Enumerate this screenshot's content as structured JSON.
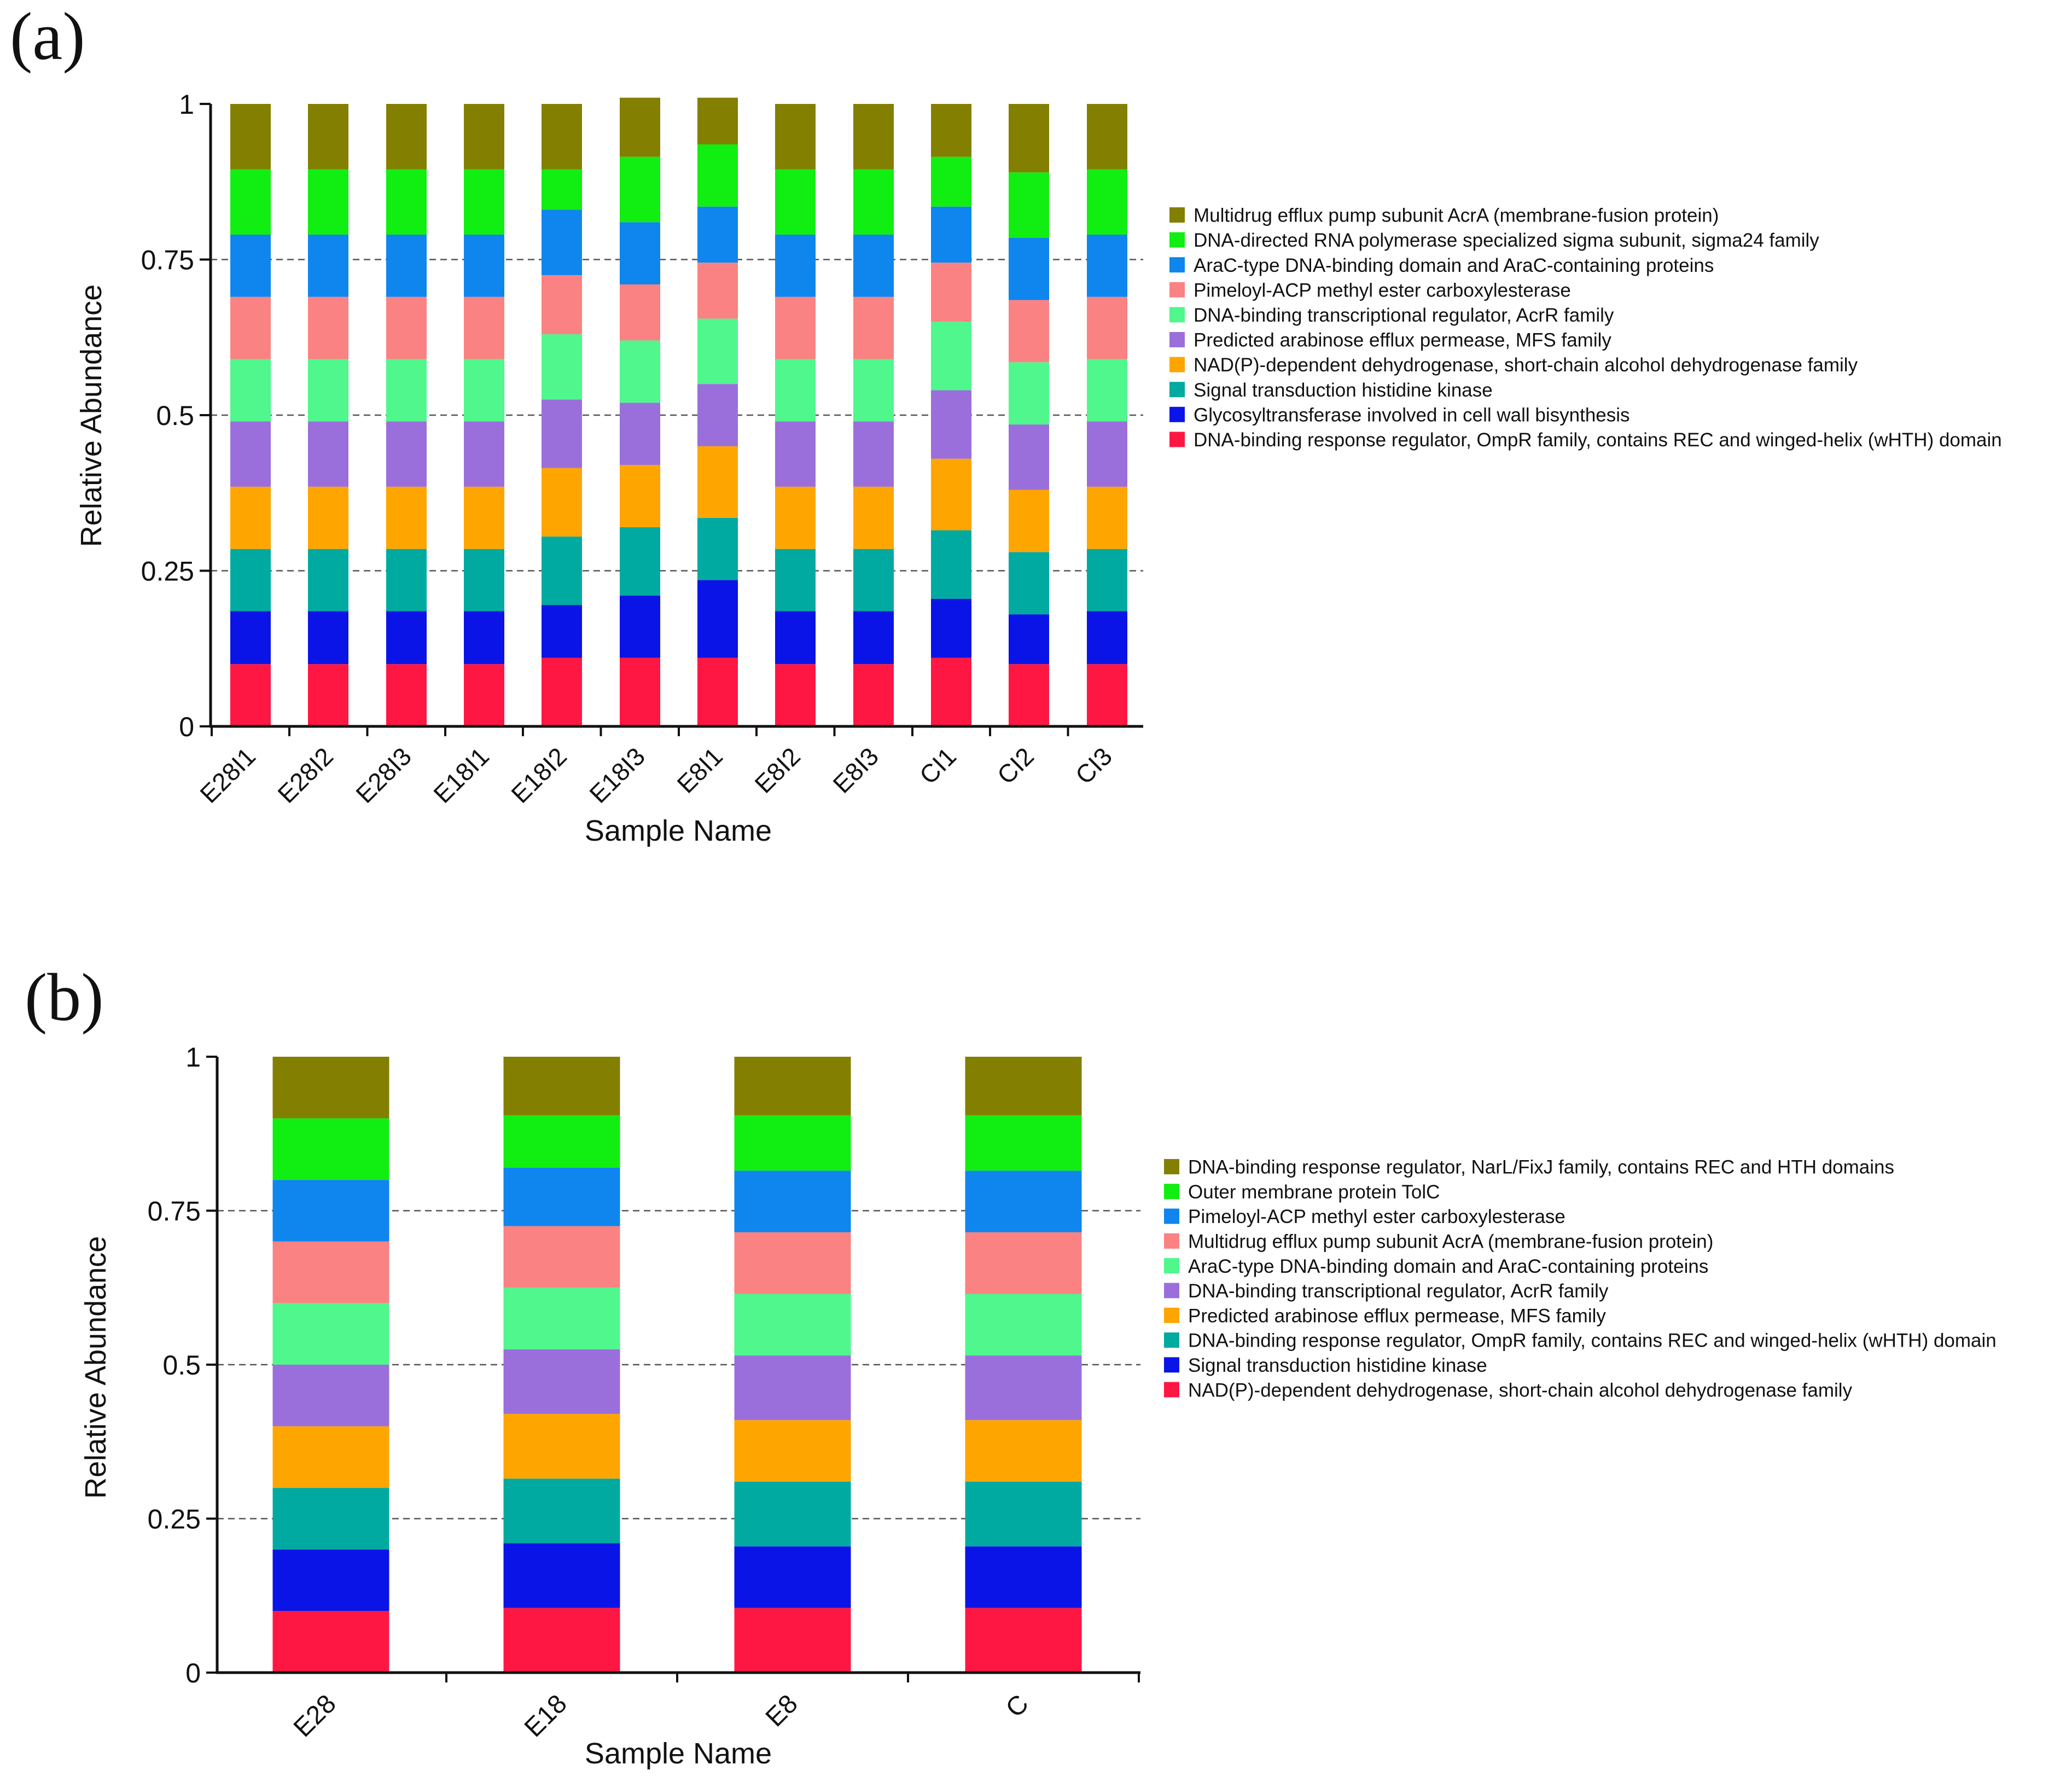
{
  "chart_data": [
    {
      "type": "bar",
      "stacked": true,
      "panel_label": "(a)",
      "xlabel": "Sample Name",
      "ylabel": "Relative Abundance",
      "ylim": [
        0,
        1
      ],
      "yticks": [
        "0",
        "0.25",
        "0.5",
        "0.75",
        "1"
      ],
      "ytick_values": [
        0,
        0.25,
        0.5,
        0.75,
        1
      ],
      "gridlines": "dashed at 0.25, 0.5, 0.75",
      "legend_position": "right",
      "categories": [
        "E28I1",
        "E28I2",
        "E28I3",
        "E18I1",
        "E18I2",
        "E18I3",
        "E8I1",
        "E8I2",
        "E8I3",
        "CI1",
        "CI2",
        "CI3"
      ],
      "series": [
        {
          "name": "DNA-binding response regulator, OmpR family, contains REC and winged-helix (wHTH) domain",
          "color": "#ff1744",
          "values": [
            0.1,
            0.1,
            0.1,
            0.1,
            0.11,
            0.11,
            0.11,
            0.1,
            0.1,
            0.11,
            0.1,
            0.1
          ]
        },
        {
          "name": "Glycosyltransferase involved in cell wall bisynthesis",
          "color": "#0a14e6",
          "values": [
            0.085,
            0.085,
            0.085,
            0.085,
            0.085,
            0.1,
            0.125,
            0.085,
            0.085,
            0.095,
            0.08,
            0.085
          ]
        },
        {
          "name": "Signal transduction histidine kinase",
          "color": "#00aaa0",
          "values": [
            0.1,
            0.1,
            0.1,
            0.1,
            0.11,
            0.11,
            0.1,
            0.1,
            0.1,
            0.11,
            0.1,
            0.1
          ]
        },
        {
          "name": "NAD(P)-dependent dehydrogenase, short-chain alcohol dehydrogenase family",
          "color": "#ffa500",
          "values": [
            0.1,
            0.1,
            0.1,
            0.1,
            0.11,
            0.1,
            0.115,
            0.1,
            0.1,
            0.115,
            0.1,
            0.1
          ]
        },
        {
          "name": "Predicted arabinose efflux permease, MFS family",
          "color": "#9a6fdc",
          "values": [
            0.105,
            0.105,
            0.105,
            0.105,
            0.11,
            0.1,
            0.1,
            0.105,
            0.105,
            0.11,
            0.105,
            0.105
          ]
        },
        {
          "name": "DNA-binding transcriptional regulator, AcrR family",
          "color": "#4ff78d",
          "values": [
            0.1,
            0.1,
            0.1,
            0.1,
            0.105,
            0.1,
            0.105,
            0.1,
            0.1,
            0.11,
            0.1,
            0.1
          ]
        },
        {
          "name": "Pimeloyl-ACP methyl ester carboxylesterase",
          "color": "#fb8282",
          "values": [
            0.1,
            0.1,
            0.1,
            0.1,
            0.095,
            0.09,
            0.09,
            0.1,
            0.1,
            0.095,
            0.1,
            0.1
          ]
        },
        {
          "name": "AraC-type DNA-binding domain and AraC-containing proteins",
          "color": "#0e86ee",
          "values": [
            0.1,
            0.1,
            0.1,
            0.1,
            0.105,
            0.1,
            0.09,
            0.1,
            0.1,
            0.09,
            0.1,
            0.1
          ]
        },
        {
          "name": "DNA-directed RNA polymerase specialized sigma subunit, sigma24 family",
          "color": "#11ee11",
          "values": [
            0.105,
            0.105,
            0.105,
            0.105,
            0.065,
            0.105,
            0.1,
            0.105,
            0.105,
            0.08,
            0.105,
            0.105
          ]
        },
        {
          "name": "Multidrug efflux pump subunit AcrA (membrane-fusion protein)",
          "color": "#837f00",
          "values": [
            0.105,
            0.105,
            0.105,
            0.105,
            0.105,
            0.095,
            0.075,
            0.105,
            0.105,
            0.085,
            0.11,
            0.105
          ]
        }
      ],
      "legend_order": [
        "Multidrug efflux pump subunit AcrA (membrane-fusion protein)",
        "DNA-directed RNA polymerase specialized sigma subunit, sigma24 family",
        "AraC-type DNA-binding domain and AraC-containing proteins",
        "Pimeloyl-ACP methyl ester carboxylesterase",
        "DNA-binding transcriptional regulator, AcrR family",
        "Predicted arabinose efflux permease, MFS family",
        "NAD(P)-dependent dehydrogenase, short-chain alcohol dehydrogenase family",
        "Signal transduction histidine kinase",
        "Glycosyltransferase involved in cell wall bisynthesis",
        "DNA-binding response regulator, OmpR family, contains REC and winged-helix (wHTH) domain"
      ]
    },
    {
      "type": "bar",
      "stacked": true,
      "panel_label": "(b)",
      "xlabel": "Sample Name",
      "ylabel": "Relative Abundance",
      "ylim": [
        0,
        1
      ],
      "yticks": [
        "0",
        "0.25",
        "0.5",
        "0.75",
        "1"
      ],
      "ytick_values": [
        0,
        0.25,
        0.5,
        0.75,
        1
      ],
      "gridlines": "dashed at 0.25, 0.5, 0.75",
      "legend_position": "right",
      "categories": [
        "E28",
        "E18",
        "E8",
        "C"
      ],
      "series": [
        {
          "name": "NAD(P)-dependent dehydrogenase, short-chain alcohol dehydrogenase family",
          "color": "#ff1744",
          "values": [
            0.1,
            0.105,
            0.105,
            0.105
          ]
        },
        {
          "name": "Signal transduction histidine kinase",
          "color": "#0a14e6",
          "values": [
            0.1,
            0.105,
            0.1,
            0.1
          ]
        },
        {
          "name": "DNA-binding response regulator, OmpR family, contains REC and winged-helix (wHTH) domain",
          "color": "#00aaa0",
          "values": [
            0.1,
            0.105,
            0.105,
            0.105
          ]
        },
        {
          "name": "Predicted arabinose efflux permease, MFS family",
          "color": "#ffa500",
          "values": [
            0.1,
            0.105,
            0.1,
            0.1
          ]
        },
        {
          "name": "DNA-binding transcriptional regulator, AcrR family",
          "color": "#9a6fdc",
          "values": [
            0.1,
            0.105,
            0.105,
            0.105
          ]
        },
        {
          "name": "AraC-type DNA-binding domain and AraC-containing proteins",
          "color": "#4ff78d",
          "values": [
            0.1,
            0.1,
            0.1,
            0.1
          ]
        },
        {
          "name": "Multidrug efflux pump subunit AcrA (membrane-fusion protein)",
          "color": "#fb8282",
          "values": [
            0.1,
            0.1,
            0.1,
            0.1
          ]
        },
        {
          "name": "Pimeloyl-ACP methyl ester carboxylesterase",
          "color": "#0e86ee",
          "values": [
            0.1,
            0.095,
            0.1,
            0.1
          ]
        },
        {
          "name": "Outer membrane protein TolC",
          "color": "#11ee11",
          "values": [
            0.1,
            0.085,
            0.09,
            0.09
          ]
        },
        {
          "name": "DNA-binding response regulator, NarL/FixJ family, contains REC and HTH domains",
          "color": "#837f00",
          "values": [
            0.1,
            0.095,
            0.095,
            0.095
          ]
        }
      ],
      "legend_order": [
        "DNA-binding response regulator, NarL/FixJ family, contains REC and HTH domains",
        "Outer membrane protein TolC",
        "Pimeloyl-ACP methyl ester carboxylesterase",
        "Multidrug efflux pump subunit AcrA (membrane-fusion protein)",
        "AraC-type DNA-binding domain and AraC-containing proteins",
        "DNA-binding transcriptional regulator, AcrR family",
        "Predicted arabinose efflux permease, MFS family",
        "DNA-binding response regulator, OmpR family, contains REC and winged-helix (wHTH) domain",
        "Signal transduction histidine kinase",
        "NAD(P)-dependent dehydrogenase, short-chain alcohol dehydrogenase family"
      ]
    }
  ]
}
